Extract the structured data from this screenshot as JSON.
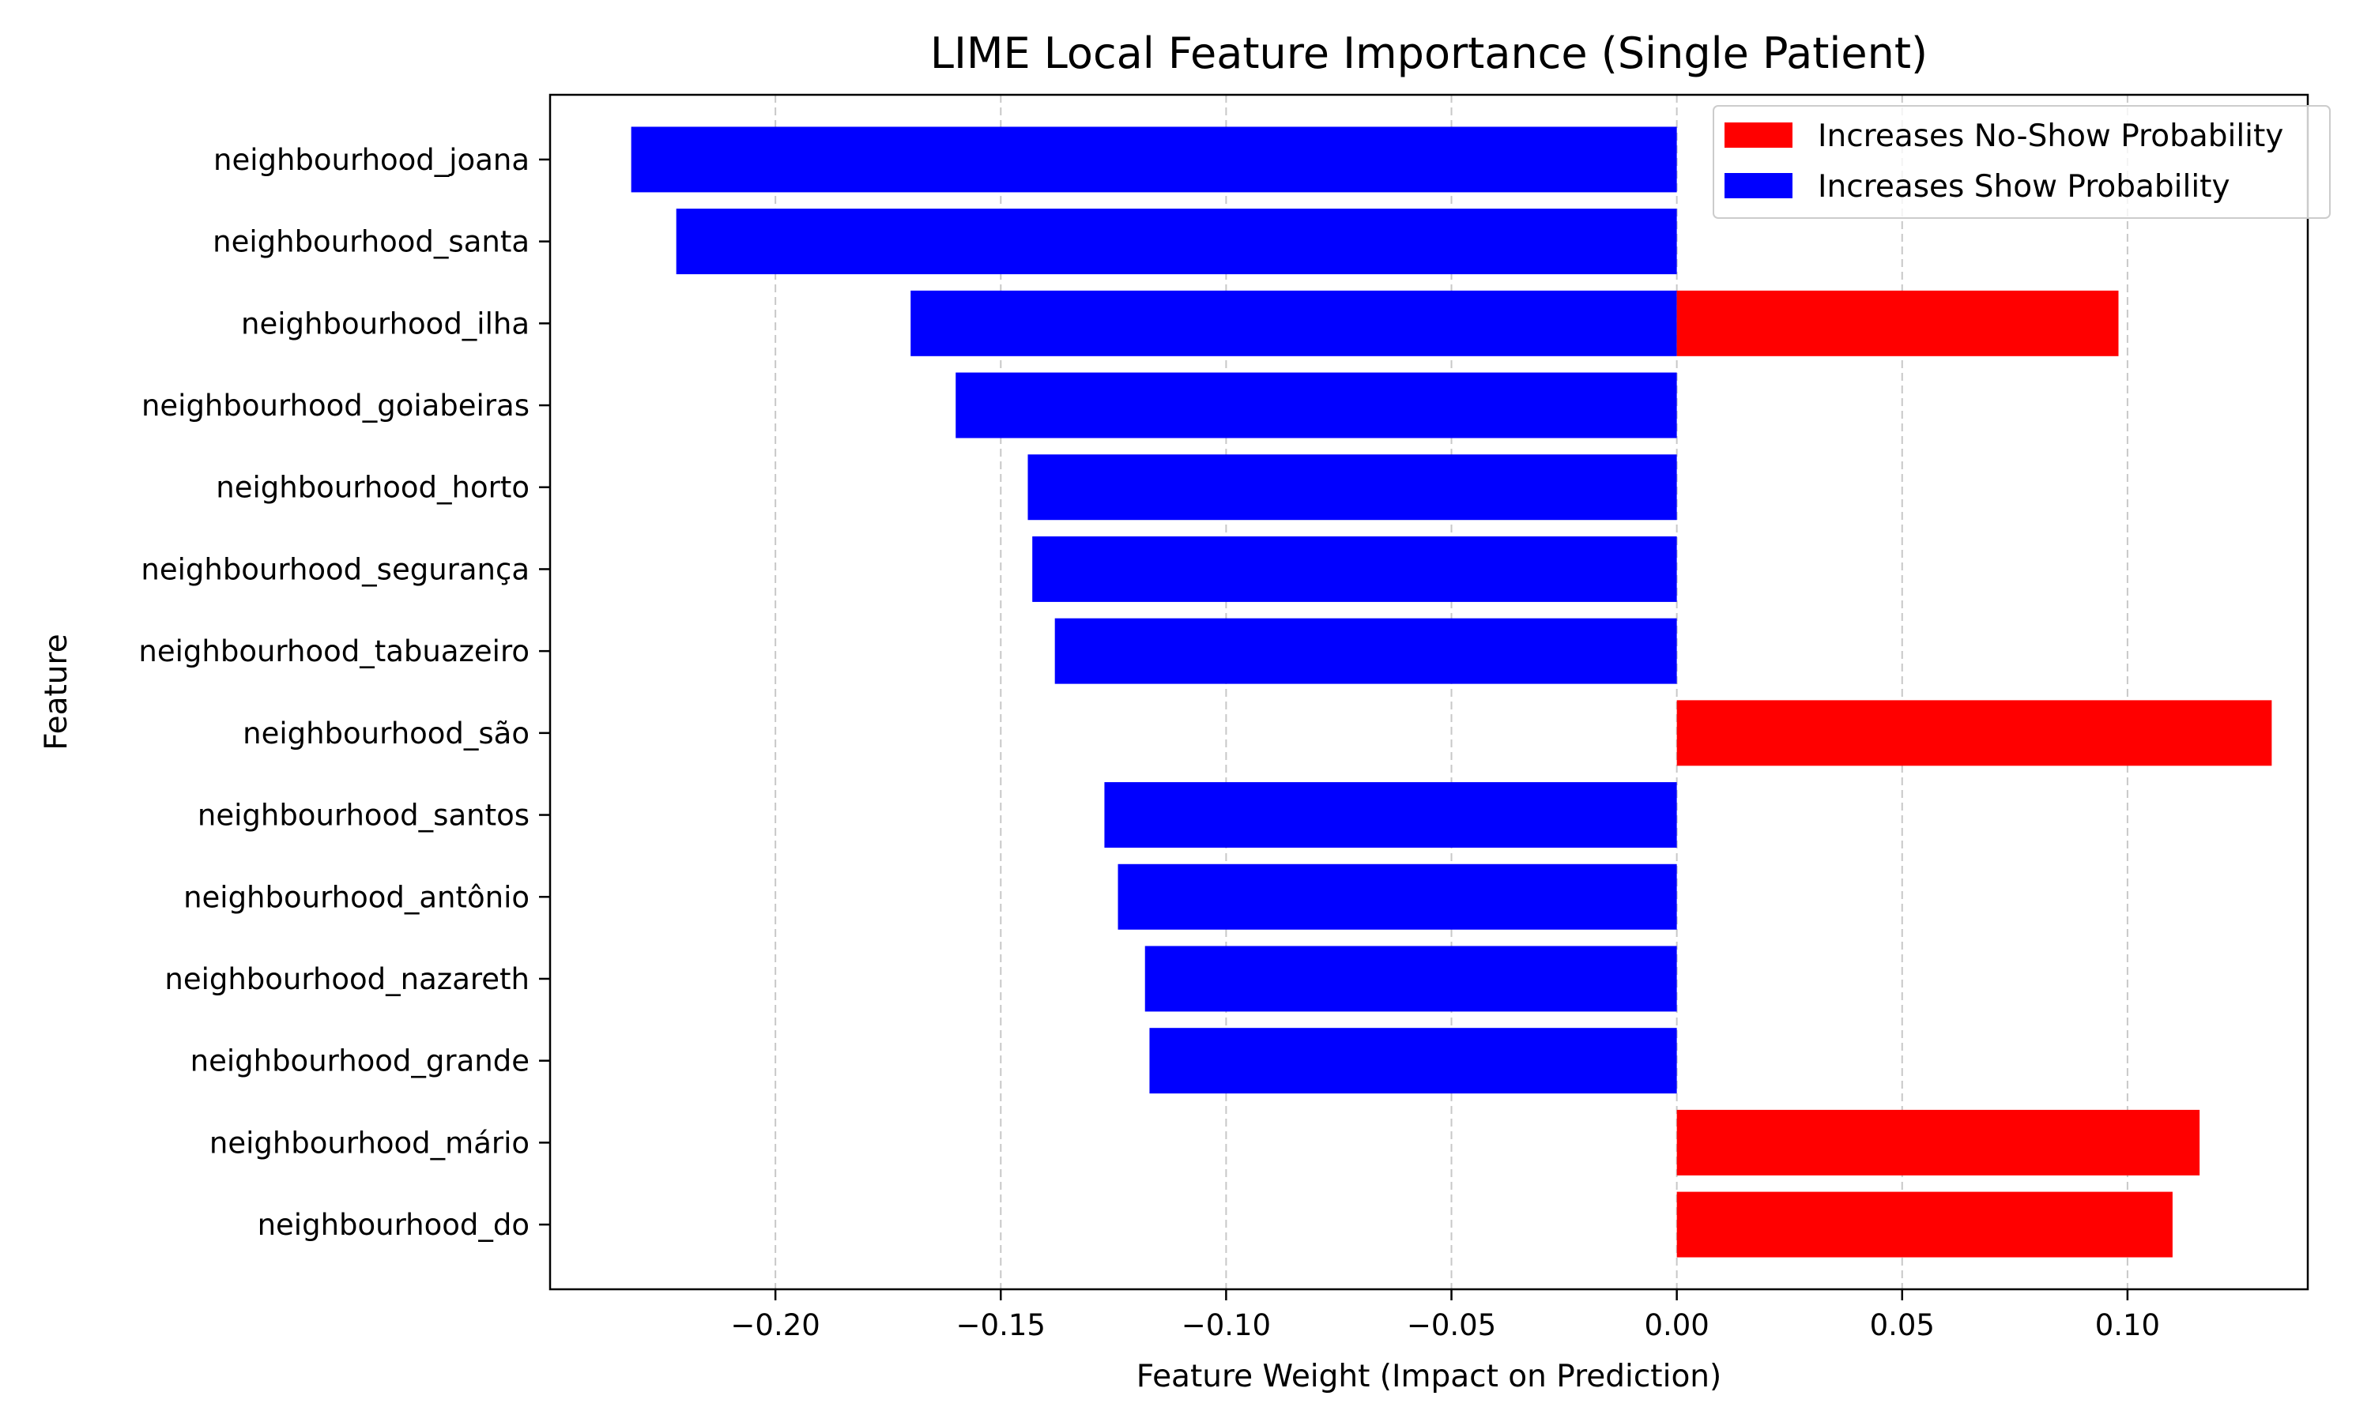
{
  "chart_data": {
    "type": "bar",
    "orientation": "horizontal",
    "title": "LIME Local Feature Importance (Single Patient)",
    "xlabel": "Feature Weight (Impact on Prediction)",
    "ylabel": "Feature",
    "xlim": [
      -0.25,
      0.14
    ],
    "xticks": [
      -0.2,
      -0.15,
      -0.1,
      -0.05,
      0.0,
      0.05,
      0.1
    ],
    "xtick_labels": [
      "−0.20",
      "−0.15",
      "−0.10",
      "−0.05",
      "0.00",
      "0.05",
      "0.10"
    ],
    "grid": "vertical dashed",
    "legend_position": "top-right",
    "legend": [
      {
        "label": "Increases No-Show Probability",
        "color": "#ff0000"
      },
      {
        "label": "Increases Show Probability",
        "color": "#0000ff"
      }
    ],
    "positive_color": "#ff0000",
    "negative_color": "#0000ff",
    "categories": [
      "neighbourhood_joana",
      "neighbourhood_santa",
      "neighbourhood_ilha",
      "neighbourhood_goiabeiras",
      "neighbourhood_horto",
      "neighbourhood_segurança",
      "neighbourhood_tabuazeiro",
      "neighbourhood_são",
      "neighbourhood_santos",
      "neighbourhood_antônio",
      "neighbourhood_nazareth",
      "neighbourhood_grande",
      "neighbourhood_mário",
      "neighbourhood_do"
    ],
    "series": [
      {
        "name": "Increases Show Probability",
        "values": [
          -0.232,
          -0.222,
          -0.17,
          -0.16,
          -0.144,
          -0.143,
          -0.138,
          null,
          -0.127,
          -0.124,
          -0.118,
          -0.117,
          null,
          null
        ]
      },
      {
        "name": "Increases No-Show Probability",
        "values": [
          null,
          null,
          0.098,
          null,
          null,
          null,
          null,
          0.132,
          null,
          null,
          null,
          null,
          0.116,
          0.11
        ]
      }
    ]
  }
}
